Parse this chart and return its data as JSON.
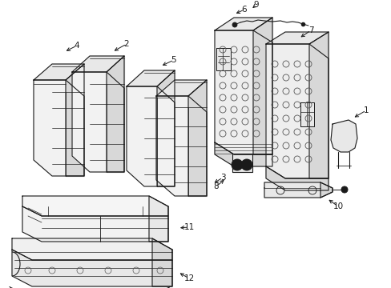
{
  "background_color": "#ffffff",
  "line_color": "#1a1a1a",
  "fill_light": "#f2f2f2",
  "fill_mid": "#e8e8e8",
  "fill_dark": "#d8d8d8",
  "fig_width": 4.89,
  "fig_height": 3.6,
  "dpi": 100
}
